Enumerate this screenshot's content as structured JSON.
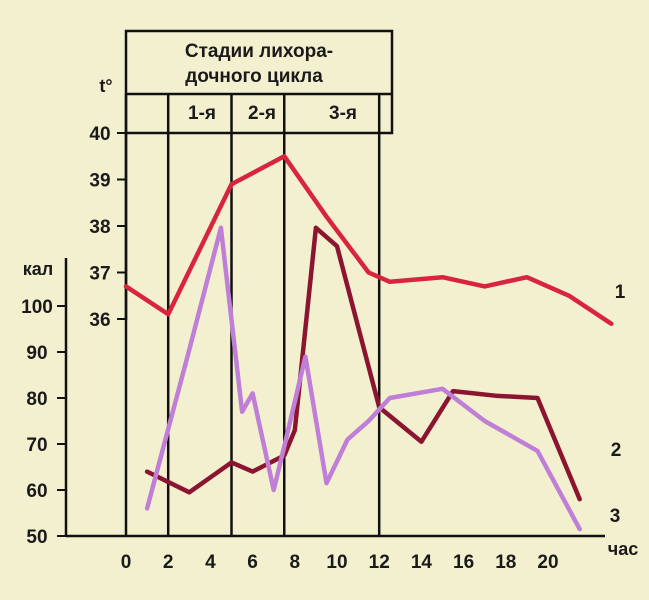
{
  "chart_data": {
    "type": "line",
    "header": {
      "title_line1": "Стадии лихора-",
      "title_line2": "дочного цикла",
      "stages": [
        "1-я",
        "2-я",
        "3-я"
      ]
    },
    "x": {
      "label": "час",
      "ticks": [
        0,
        2,
        4,
        6,
        8,
        10,
        12,
        14,
        16,
        18,
        20
      ],
      "range": [
        0,
        22.5
      ],
      "stage_bounds_hours": [
        0,
        2,
        5,
        7.5,
        12
      ]
    },
    "y_left_temp": {
      "label": "t°",
      "ticks": [
        36,
        37,
        38,
        39,
        40
      ],
      "range": [
        32.1,
        40
      ]
    },
    "y_left_cal": {
      "label": "кал",
      "ticks": [
        50,
        60,
        70,
        80,
        90,
        100
      ],
      "range": [
        50,
        100
      ]
    },
    "series": [
      {
        "name": "1",
        "axis": "temp",
        "color": "#d9243e",
        "x": [
          0,
          2,
          5,
          7.5,
          9.5,
          11.5,
          12.5,
          15,
          17,
          19,
          21,
          23
        ],
        "y": [
          36.7,
          36.1,
          38.9,
          39.5,
          38.2,
          37.0,
          36.8,
          36.9,
          36.7,
          36.9,
          36.5,
          35.9
        ]
      },
      {
        "name": "2",
        "axis": "cal",
        "color": "#8b1530",
        "x": [
          1,
          3,
          5,
          6,
          7.5,
          8,
          9,
          10,
          12,
          14,
          15.5,
          17.5,
          19.5,
          21.5
        ],
        "y": [
          64,
          59.5,
          66,
          64,
          67.5,
          73,
          117,
          113,
          78,
          70.5,
          81.5,
          80.5,
          80,
          58
        ]
      },
      {
        "name": "3",
        "axis": "cal",
        "color": "#c07fd6",
        "x": [
          1,
          3,
          4.5,
          5.5,
          6,
          7,
          7.5,
          8.5,
          9.5,
          10.5,
          11.5,
          12.5,
          15,
          17,
          19.5,
          21.5
        ],
        "y": [
          56,
          90.5,
          117,
          77,
          81,
          60,
          69.5,
          89,
          61.5,
          71,
          75,
          80,
          82,
          75,
          68.5,
          51.5
        ]
      }
    ]
  }
}
